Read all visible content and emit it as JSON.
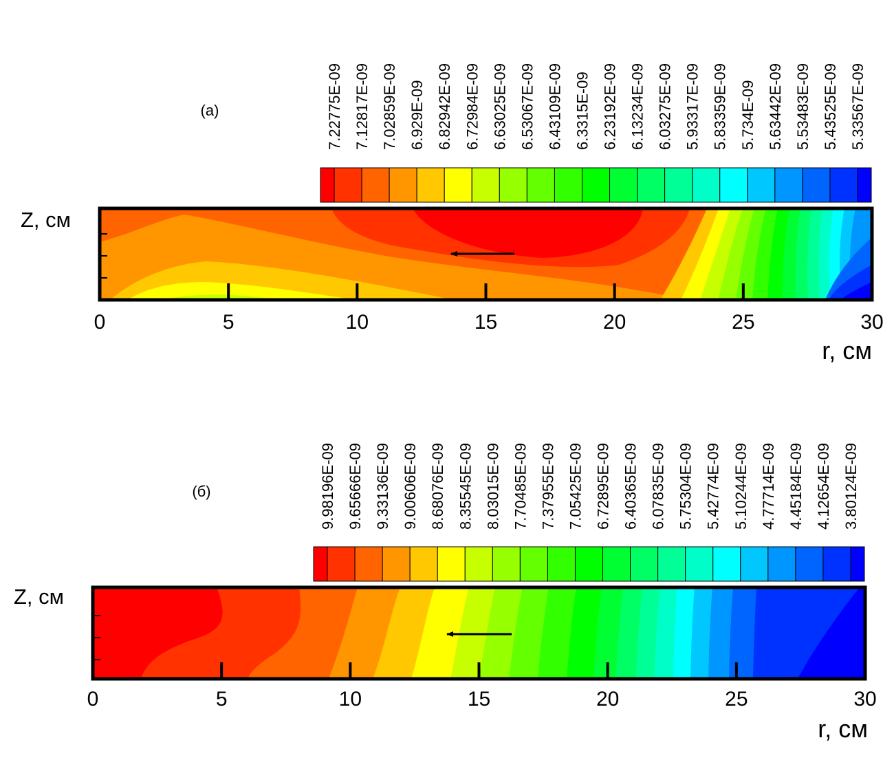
{
  "chart_data": [
    {
      "type": "heatmap",
      "panel_label": "(а)",
      "xlabel": "r, см",
      "ylabel": "Z, см",
      "xlim": [
        0,
        30
      ],
      "x_ticks": [
        "0",
        "5",
        "10",
        "15",
        "20",
        "25",
        "30"
      ],
      "legend_levels": [
        "7.22775E-09",
        "7.12817E-09",
        "7.02859E-09",
        "6.929E-09",
        "6.82942E-09",
        "6.72984E-09",
        "6.63025E-09",
        "6.53067E-09",
        "6.43109E-09",
        "6.3315E-09",
        "6.23192E-09",
        "6.13234E-09",
        "6.03275E-09",
        "5.93317E-09",
        "5.83359E-09",
        "5.734E-09",
        "5.63442E-09",
        "5.53483E-09",
        "5.43525E-09",
        "5.33567E-09"
      ],
      "colors": [
        "#ff0000",
        "#ff3200",
        "#ff6400",
        "#ff9600",
        "#ffc800",
        "#ffff00",
        "#c8ff00",
        "#96ff00",
        "#64ff00",
        "#32ff00",
        "#00ff00",
        "#00ff32",
        "#00ff64",
        "#00ff96",
        "#00ffc8",
        "#00ffff",
        "#00c8ff",
        "#0096ff",
        "#0064ff",
        "#0032ff",
        "#0000ff"
      ],
      "arrow": "flow toward smaller r"
    },
    {
      "type": "heatmap",
      "panel_label": "(б)",
      "xlabel": "r, см",
      "ylabel": "Z, см",
      "xlim": [
        0,
        30
      ],
      "x_ticks": [
        "0",
        "5",
        "10",
        "15",
        "20",
        "25",
        "30"
      ],
      "legend_levels": [
        "9.98196E-09",
        "9.65666E-09",
        "9.33136E-09",
        "9.00606E-09",
        "8.68076E-09",
        "8.35545E-09",
        "8.03015E-09",
        "7.70485E-09",
        "7.37955E-09",
        "7.05425E-09",
        "6.72895E-09",
        "6.40365E-09",
        "6.07835E-09",
        "5.75304E-09",
        "5.42774E-09",
        "5.10244E-09",
        "4.77714E-09",
        "4.45184E-09",
        "4.12654E-09",
        "3.80124E-09"
      ],
      "colors": [
        "#ff0000",
        "#ff3200",
        "#ff6400",
        "#ff9600",
        "#ffc800",
        "#ffff00",
        "#c8ff00",
        "#96ff00",
        "#64ff00",
        "#32ff00",
        "#00ff00",
        "#00ff32",
        "#00ff64",
        "#00ff96",
        "#00ffc8",
        "#00ffff",
        "#00c8ff",
        "#0096ff",
        "#0064ff",
        "#0032ff",
        "#0000ff"
      ],
      "arrow": "flow toward smaller r"
    }
  ]
}
